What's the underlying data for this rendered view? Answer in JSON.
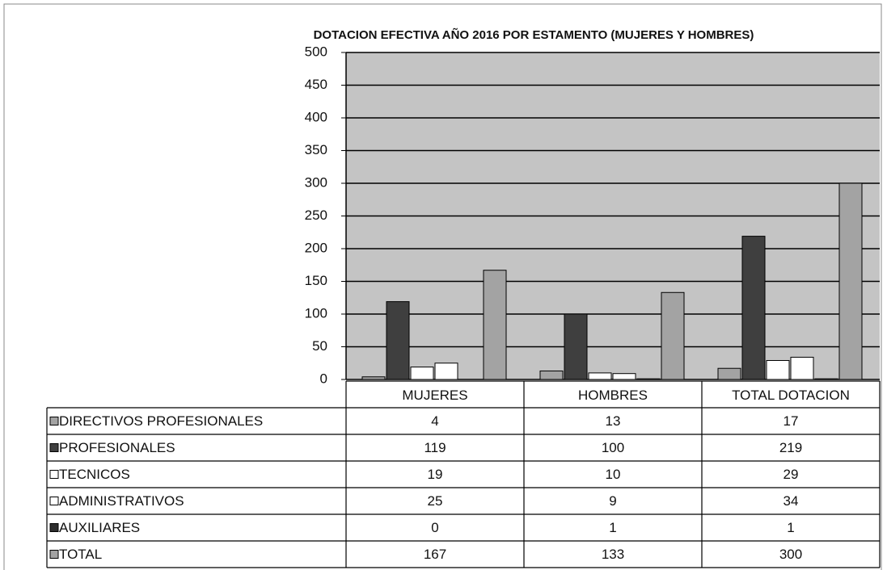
{
  "chart_data": {
    "type": "bar",
    "title": "DOTACION EFECTIVA AÑO 2016 POR ESTAMENTO (MUJERES Y HOMBRES)",
    "categories": [
      "MUJERES",
      "HOMBRES",
      "TOTAL DOTACION"
    ],
    "series": [
      {
        "name": "DIRECTIVOS PROFESIONALES",
        "color": "#a3a3a3",
        "values": [
          4,
          13,
          17
        ]
      },
      {
        "name": "PROFESIONALES",
        "color": "#3f3f3f",
        "values": [
          119,
          100,
          219
        ]
      },
      {
        "name": "TECNICOS",
        "color": "#ffffff",
        "values": [
          19,
          10,
          29
        ]
      },
      {
        "name": "ADMINISTRATIVOS",
        "color": "#ffffff",
        "values": [
          25,
          9,
          34
        ]
      },
      {
        "name": "AUXILIARES",
        "color": "#2e2e2e",
        "values": [
          0,
          1,
          1
        ]
      },
      {
        "name": "TOTAL",
        "color": "#a3a3a3",
        "values": [
          167,
          133,
          300
        ]
      }
    ],
    "ylim": [
      0,
      500
    ],
    "yticks": [
      0,
      50,
      100,
      150,
      200,
      250,
      300,
      350,
      400,
      450,
      500
    ],
    "grid": true,
    "plot_background": "#c4c4c4"
  }
}
